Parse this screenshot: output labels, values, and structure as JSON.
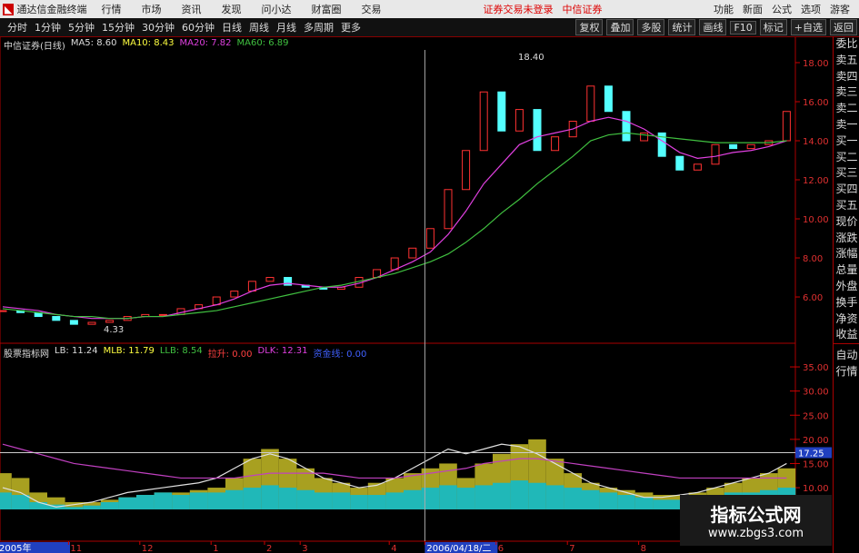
{
  "app": {
    "title": "通达信金融终端",
    "menu": [
      "行情",
      "市场",
      "资讯",
      "发现",
      "问小达",
      "财富圈",
      "交易"
    ],
    "status": [
      "证券交易未登录",
      "中信证券"
    ],
    "menu_right": [
      "功能",
      "新面",
      "公式",
      "选项",
      "游客"
    ]
  },
  "toolbar": {
    "periods": [
      "分时",
      "1分钟",
      "5分钟",
      "15分钟",
      "30分钟",
      "60分钟",
      "日线",
      "周线",
      "月线",
      "多周期",
      "更多"
    ],
    "tools": [
      "复权",
      "叠加",
      "多股",
      "统计",
      "画线",
      "F10",
      "标记",
      "+自选",
      "返回"
    ]
  },
  "side_panel": {
    "labels": [
      "委比",
      "卖五",
      "卖四",
      "卖三",
      "卖二",
      "卖一",
      "买一",
      "买二",
      "买三",
      "买四",
      "买五",
      "现价",
      "涨跌",
      "涨幅",
      "总量",
      "外盘",
      "换手",
      "净资",
      "收益"
    ],
    "bottom": [
      "自动",
      "行情"
    ]
  },
  "price_chart": {
    "type": "candlestick",
    "title": "中信证券(日线)",
    "legend": [
      "MA5: 8.60",
      "MA10: 8.43",
      "MA20: 7.82",
      "MA60: 6.89"
    ],
    "annotations": [
      "18.40",
      "4.33"
    ],
    "categories": [
      "2005年",
      null,
      null,
      null,
      "11",
      null,
      null,
      null,
      "12",
      null,
      null,
      null,
      "1",
      null,
      null,
      "2",
      null,
      "3",
      null,
      null,
      null,
      null,
      "4",
      null,
      "2006/04/18/二",
      null,
      null,
      null,
      "6",
      null,
      null,
      null,
      "7",
      null,
      null,
      null,
      "8",
      null,
      null,
      null,
      null,
      null,
      null,
      null,
      null
    ],
    "close": [
      5.3,
      5.2,
      5.0,
      4.8,
      4.6,
      4.7,
      4.8,
      5.0,
      5.1,
      5.1,
      5.4,
      5.6,
      6.0,
      6.3,
      6.8,
      7.0,
      6.6,
      6.5,
      6.4,
      6.5,
      7.0,
      7.4,
      8.0,
      8.5,
      9.5,
      11.5,
      13.5,
      16.5,
      14.5,
      15.6,
      13.5,
      14.2,
      15.0,
      16.8,
      15.5,
      14.0,
      14.4,
      13.2,
      12.5,
      12.8,
      13.8,
      13.6,
      13.8,
      14.0,
      15.5
    ],
    "series": [
      {
        "color": "#e040e0",
        "values": [
          5.5,
          5.4,
          5.3,
          5.1,
          5.0,
          4.9,
          4.9,
          4.9,
          5.0,
          5.0,
          5.2,
          5.4,
          5.6,
          5.9,
          6.3,
          6.6,
          6.7,
          6.6,
          6.5,
          6.5,
          6.7,
          7.0,
          7.4,
          7.8,
          8.3,
          9.2,
          10.4,
          11.8,
          12.8,
          13.8,
          14.2,
          14.4,
          14.6,
          15.0,
          15.2,
          15.0,
          14.6,
          14.0,
          13.4,
          13.1,
          13.2,
          13.4,
          13.5,
          13.7,
          14.0
        ]
      },
      {
        "color": "#40c040",
        "values": [
          5.4,
          5.3,
          5.2,
          5.1,
          5.0,
          5.0,
          4.9,
          4.9,
          5.0,
          5.0,
          5.1,
          5.2,
          5.3,
          5.5,
          5.7,
          5.9,
          6.1,
          6.3,
          6.5,
          6.6,
          6.8,
          7.0,
          7.2,
          7.5,
          7.8,
          8.2,
          8.8,
          9.5,
          10.3,
          11.0,
          11.8,
          12.5,
          13.2,
          14.0,
          14.3,
          14.4,
          14.3,
          14.2,
          14.1,
          14.0,
          13.9,
          13.9,
          13.9,
          13.9,
          14.0
        ]
      }
    ],
    "ylim": [
      3.63,
      18.65
    ],
    "yticks": [
      {
        "value": 18,
        "label": "18.00"
      },
      {
        "value": 16,
        "label": "16.00"
      },
      {
        "value": 14,
        "label": "14.00"
      },
      {
        "value": 12,
        "label": "12.00"
      },
      {
        "value": 10,
        "label": "10.00"
      },
      {
        "value": 8,
        "label": "8.00"
      },
      {
        "value": 6,
        "label": "6.00"
      }
    ]
  },
  "indicator_chart": {
    "type": "bar",
    "title": "股票指标网",
    "legend": [
      "LB: 11.24",
      "MLB: 11.79",
      "LLB: 8.54",
      "拉升: 0.00",
      "DLK: 12.31",
      "资金线: 0.00"
    ],
    "series": [
      {
        "color": "#a8a020",
        "values": [
          13,
          12,
          9,
          8,
          7,
          7,
          7.5,
          8,
          8.5,
          9,
          9,
          9.5,
          10,
          12,
          16,
          18,
          16,
          14,
          12,
          11,
          10,
          11,
          12,
          13,
          14,
          15,
          12,
          15,
          17,
          19,
          20,
          16,
          13,
          11,
          10,
          9.5,
          9,
          8.5,
          8.5,
          9,
          10,
          11,
          12,
          13,
          14
        ]
      },
      {
        "color": "#20b8b8",
        "values": [
          9,
          8.5,
          7,
          6.5,
          6,
          6.3,
          7,
          8,
          8.5,
          9,
          8.5,
          9,
          9,
          9.5,
          10,
          10.5,
          10,
          9.5,
          9,
          9,
          8.5,
          8.5,
          9,
          9.5,
          10,
          10.5,
          10,
          10.5,
          11,
          11.5,
          11,
          10.5,
          10,
          9.5,
          9,
          8.5,
          8,
          7.5,
          7.5,
          8,
          8.5,
          9,
          9,
          9.5,
          10
        ]
      }
    ],
    "lines": [
      {
        "color": "#e0e0e0",
        "values": [
          10,
          9,
          7,
          6,
          6.5,
          7,
          8,
          9,
          9.5,
          10,
          10.5,
          11,
          12,
          14,
          16,
          17,
          16,
          14,
          12,
          11,
          10,
          10.5,
          12,
          14,
          16,
          18,
          17,
          18,
          19,
          18.5,
          17,
          15,
          13,
          11,
          10,
          9,
          8,
          8,
          8.5,
          9,
          10,
          11,
          12,
          13,
          15
        ]
      },
      {
        "color": "#c040c0",
        "values": [
          19,
          18,
          17,
          16,
          15,
          14.5,
          14,
          13.5,
          13,
          12.5,
          12,
          12,
          12,
          12,
          12.5,
          13,
          13,
          13,
          13,
          12.5,
          12,
          12,
          12,
          12.5,
          13,
          13.5,
          14,
          15,
          15.5,
          16,
          16,
          15.5,
          15,
          14.5,
          14,
          13.5,
          13,
          12.5,
          12,
          12,
          12,
          12,
          12,
          12,
          12
        ]
      }
    ],
    "current": {
      "value": 17.25,
      "label": "17.25"
    },
    "ylim": [
      5.5,
      36.7
    ],
    "yticks": [
      {
        "value": 35,
        "label": "35.00"
      },
      {
        "value": 30,
        "label": "30.00"
      },
      {
        "value": 25,
        "label": "25.00"
      },
      {
        "value": 20,
        "label": "20.00"
      },
      {
        "value": 15,
        "label": "15.00"
      },
      {
        "value": 10,
        "label": "10.00"
      }
    ]
  },
  "watermark": {
    "title": "指标公式网",
    "url": "www.zbgs3.com"
  }
}
